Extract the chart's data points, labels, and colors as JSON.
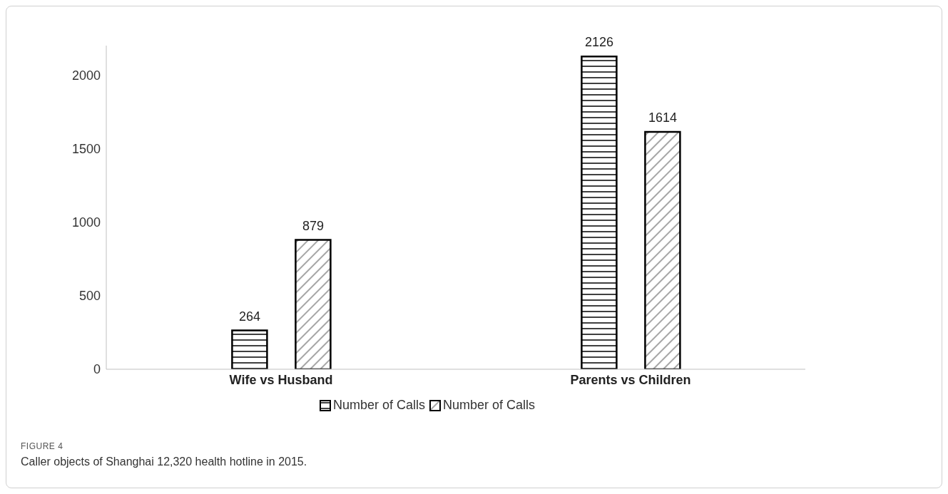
{
  "chart_data": {
    "type": "bar",
    "categories": [
      "Wife vs Husband",
      "Parents vs Children"
    ],
    "series": [
      {
        "name": "Number of Calls",
        "color": "#000000",
        "values": [
          264,
          2126
        ]
      },
      {
        "name": "Number of Calls",
        "color": "#000000",
        "values": [
          879,
          1614
        ]
      }
    ],
    "ylim": [
      0,
      2200
    ],
    "yticks": [
      0,
      500,
      1000,
      1500,
      2000
    ],
    "grid": false,
    "legend": "bottom",
    "data_labels": true,
    "annotations": [
      "FIGURE 4",
      "Caller objects of Shanghai 12,320 health hotline in 2015."
    ]
  }
}
